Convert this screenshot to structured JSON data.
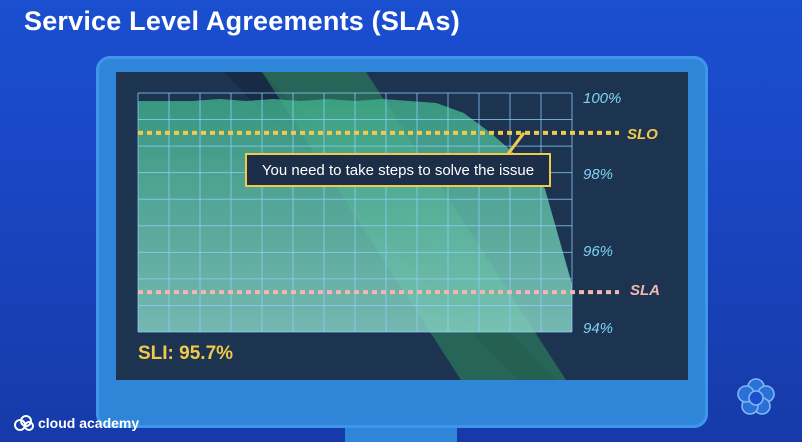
{
  "slide": {
    "title": "Service Level Agreements (SLAs)"
  },
  "chart": {
    "tooltip_text": "You need to take steps to solve the issue",
    "y_ticks": [
      "100%",
      "98%",
      "96%",
      "94%"
    ],
    "slo_label": "SLO",
    "sla_label": "SLA",
    "sli_readout": "SLI: 95.7%"
  },
  "chart_data": {
    "type": "area",
    "y_ticks": [
      100,
      98,
      96,
      94
    ],
    "ylim": [
      94,
      100
    ],
    "slo": 99.0,
    "sla": 95.0,
    "series": [
      {
        "values": [
          99.8,
          99.8,
          99.8,
          99.85,
          99.8,
          99.85,
          99.8,
          99.85,
          99.8,
          99.85,
          99.8,
          99.75,
          99.5,
          99.0,
          98.4,
          97.6,
          95.2
        ]
      }
    ]
  },
  "brand": {
    "name": "cloud academy"
  },
  "colors": {
    "background": "#1a4fd0",
    "monitor_frame": "#2f86d8",
    "screen": "#1c3450",
    "slo_line": "#f2c94c",
    "sla_line": "#f4b6b0",
    "tick_text": "#7fd3f5",
    "area_fill": "#5fd3b4"
  },
  "icons": [
    "cloud-academy-logo-icon",
    "cloud-academy-flower-icon"
  ]
}
